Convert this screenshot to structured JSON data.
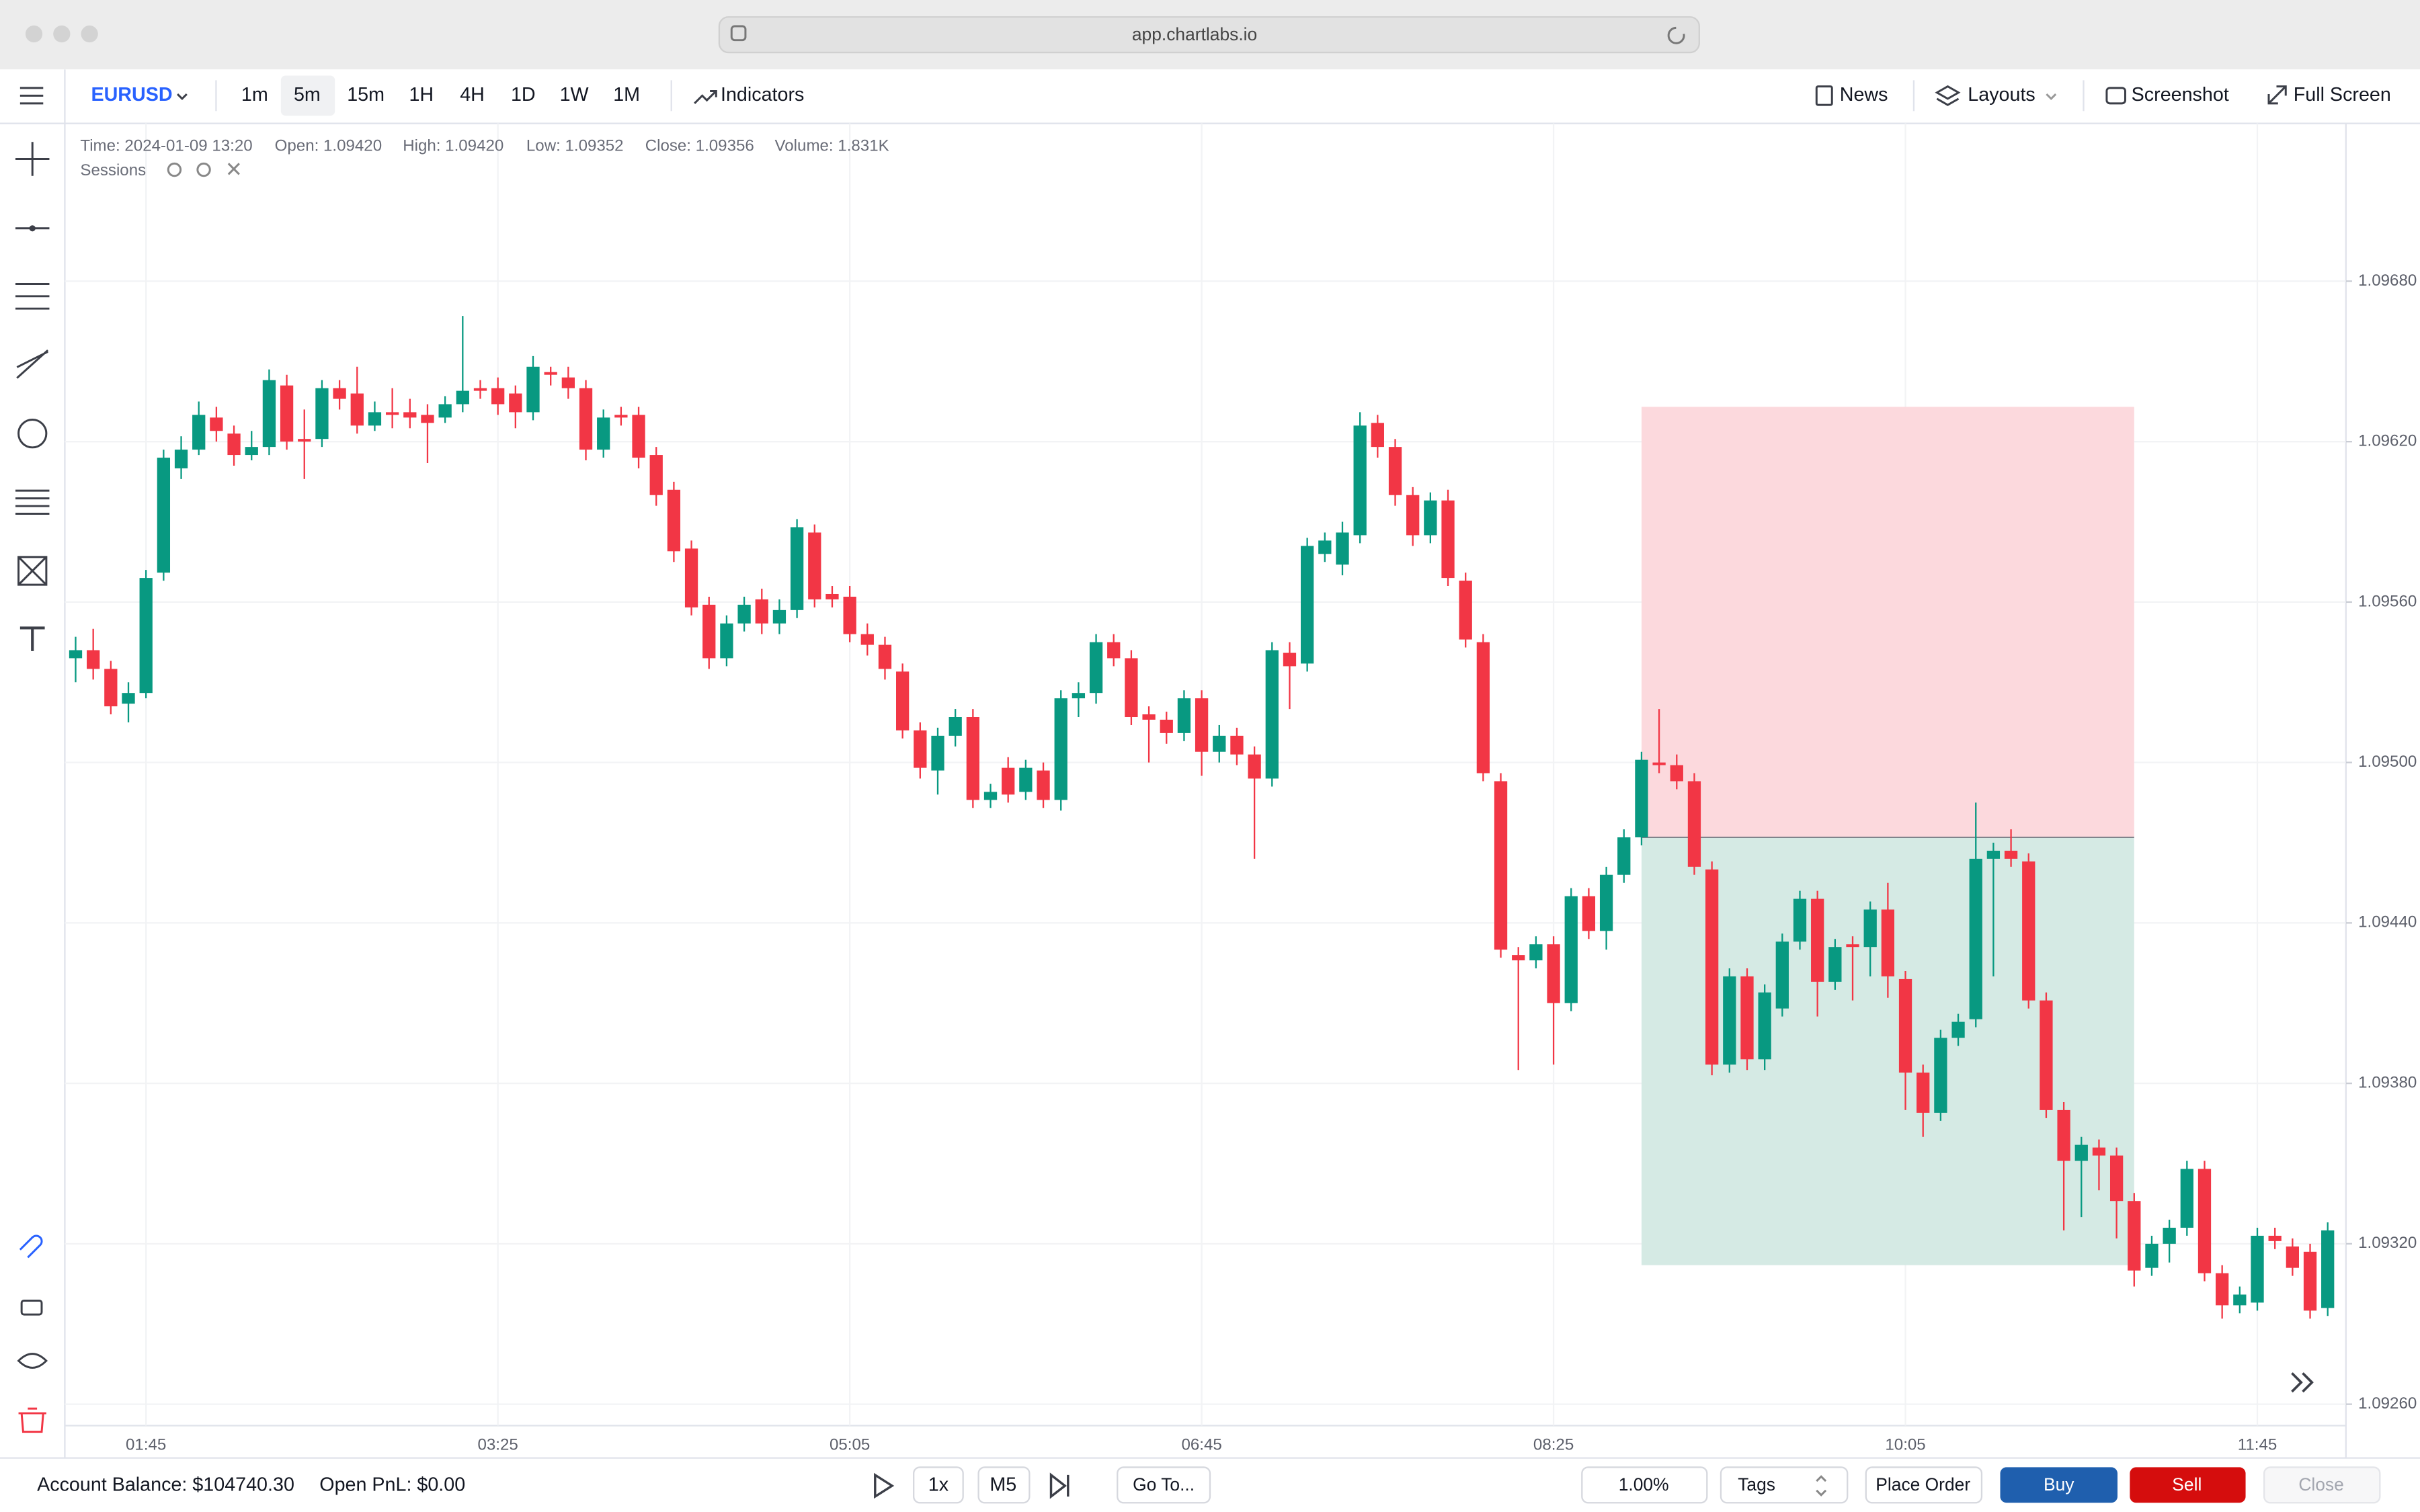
{
  "browser": {
    "url": "app.chartlabs.io"
  },
  "toolbar": {
    "symbol": "EURUSD",
    "timeframes": [
      "1m",
      "5m",
      "15m",
      "1H",
      "4H",
      "1D",
      "1W",
      "1M"
    ],
    "active_timeframe": "5m",
    "indicators": "Indicators",
    "news": "News",
    "layouts": "Layouts",
    "screenshot": "Screenshot",
    "full_screen": "Full Screen"
  },
  "legend": {
    "time": "Time: 2024-01-09 13:20",
    "open": "Open: 1.09420",
    "high": "High: 1.09420",
    "low": "Low: 1.09352",
    "close": "Close: 1.09356",
    "volume": "Volume: 1.831K",
    "sessions": "Sessions"
  },
  "bottom_bar": {
    "account_balance": "Account Balance: $104740.30",
    "open_pnl": "Open PnL: $0.00",
    "speed": "1x",
    "interval": "M5",
    "go_to": "Go To...",
    "risk": "1.00%",
    "tags": "Tags",
    "place_order": "Place Order",
    "buy": "Buy",
    "sell": "Sell",
    "close": "Close"
  },
  "chart_data": {
    "type": "candlestick",
    "up_color": "#089981",
    "down_color": "#f23645",
    "grid": true,
    "categories": [
      null,
      null,
      null,
      null,
      "01:45",
      null,
      null,
      null,
      null,
      null,
      null,
      null,
      null,
      null,
      null,
      null,
      null,
      null,
      null,
      null,
      null,
      null,
      null,
      null,
      "03:25",
      null,
      null,
      null,
      null,
      null,
      null,
      null,
      null,
      null,
      null,
      null,
      null,
      null,
      null,
      null,
      null,
      null,
      null,
      null,
      "05:05",
      null,
      null,
      null,
      null,
      null,
      null,
      null,
      null,
      null,
      null,
      null,
      null,
      null,
      null,
      null,
      null,
      null,
      null,
      null,
      "06:45",
      null,
      null,
      null,
      null,
      null,
      null,
      null,
      null,
      null,
      null,
      null,
      null,
      null,
      null,
      null,
      null,
      null,
      null,
      null,
      "08:25",
      null,
      null,
      null,
      null,
      null,
      null,
      null,
      null,
      null,
      null,
      null,
      null,
      null,
      null,
      null,
      null,
      null,
      null,
      null,
      "10:05",
      null,
      null,
      null,
      null,
      null,
      null,
      null,
      null,
      null,
      null,
      null,
      null,
      null,
      null,
      null,
      null,
      null,
      null,
      null,
      "11:45",
      null,
      null,
      null,
      null
    ],
    "open": [
      1.09539,
      1.09542,
      1.09535,
      1.09522,
      1.09526,
      1.09571,
      1.0961,
      1.09617,
      1.09629,
      1.09623,
      1.09615,
      1.09618,
      1.09641,
      1.09621,
      1.09621,
      1.0964,
      1.09638,
      1.09626,
      1.09631,
      1.09631,
      1.0963,
      1.09629,
      1.09634,
      1.0964,
      1.0964,
      1.09638,
      1.09631,
      1.09646,
      1.09644,
      1.0964,
      1.09617,
      1.0963,
      1.0963,
      1.09615,
      1.09602,
      1.0958,
      1.09559,
      1.09539,
      1.09552,
      1.09561,
      1.09552,
      1.09557,
      1.09586,
      1.09563,
      1.09562,
      1.09548,
      1.09544,
      1.09534,
      1.09512,
      1.09497,
      1.0951,
      1.09517,
      1.09486,
      1.09498,
      1.09489,
      1.09497,
      1.09486,
      1.09524,
      1.09526,
      1.09545,
      1.09539,
      1.09518,
      1.09516,
      1.09511,
      1.09524,
      1.09504,
      1.0951,
      1.09503,
      1.09494,
      1.09541,
      1.09537,
      1.09578,
      1.09574,
      1.09585,
      1.09627,
      1.09618,
      1.096,
      1.09585,
      1.09598,
      1.09568,
      1.09545,
      1.09493,
      1.09428,
      1.09426,
      1.09432,
      1.0941,
      1.0945,
      1.09437,
      1.09458,
      1.09472,
      1.095,
      1.09499,
      1.09493,
      1.0946,
      1.09387,
      1.0942,
      1.09389,
      1.09408,
      1.09433,
      1.09449,
      1.09418,
      1.09432,
      1.09431,
      1.09445,
      1.09419,
      1.09384,
      1.09369,
      1.09397,
      1.09404,
      1.09464,
      1.09467,
      1.09463,
      1.09411,
      1.0937,
      1.09351,
      1.09356,
      1.09353,
      1.09336,
      1.09311,
      1.0932,
      1.09326,
      1.09348,
      1.09309,
      1.09297,
      1.09298,
      1.09323,
      1.09319,
      1.09317,
      1.09296
    ],
    "high": [
      1.09547,
      1.0955,
      1.09538,
      1.0953,
      1.09572,
      1.09617,
      1.09622,
      1.09635,
      1.09633,
      1.09626,
      1.09624,
      1.09647,
      1.09645,
      1.09632,
      1.09643,
      1.09643,
      1.09648,
      1.09635,
      1.0964,
      1.09636,
      1.09634,
      1.09637,
      1.09667,
      1.09643,
      1.09644,
      1.09641,
      1.09652,
      1.09648,
      1.09648,
      1.09643,
      1.09632,
      1.09633,
      1.09633,
      1.09618,
      1.09605,
      1.09583,
      1.09562,
      1.09555,
      1.09562,
      1.09565,
      1.09561,
      1.09591,
      1.09589,
      1.09566,
      1.09566,
      1.09552,
      1.09547,
      1.09537,
      1.09515,
      1.09513,
      1.0952,
      1.0952,
      1.09492,
      1.09502,
      1.09501,
      1.095,
      1.09527,
      1.0953,
      1.09548,
      1.09548,
      1.09542,
      1.09521,
      1.09519,
      1.09527,
      1.09527,
      1.09514,
      1.09513,
      1.09506,
      1.09545,
      1.09545,
      1.09584,
      1.09586,
      1.0959,
      1.09631,
      1.0963,
      1.09621,
      1.09603,
      1.09601,
      1.09602,
      1.09571,
      1.09548,
      1.09496,
      1.09431,
      1.09435,
      1.09435,
      1.09453,
      1.09453,
      1.09461,
      1.09475,
      1.09504,
      1.0952,
      1.09503,
      1.09496,
      1.09463,
      1.09423,
      1.09423,
      1.09417,
      1.09436,
      1.09452,
      1.09452,
      1.09434,
      1.09435,
      1.09448,
      1.09455,
      1.09422,
      1.09387,
      1.094,
      1.09406,
      1.09485,
      1.0947,
      1.09475,
      1.09466,
      1.09414,
      1.09373,
      1.0936,
      1.09359,
      1.09356,
      1.09339,
      1.09323,
      1.09329,
      1.09351,
      1.09351,
      1.09312,
      1.09304,
      1.09326,
      1.09326,
      1.09322,
      1.0932,
      1.09328
    ],
    "low": [
      1.0953,
      1.09531,
      1.09518,
      1.09515,
      1.09524,
      1.09568,
      1.09606,
      1.09615,
      1.0962,
      1.09611,
      1.09613,
      1.09615,
      1.09617,
      1.09606,
      1.09618,
      1.09632,
      1.09623,
      1.09624,
      1.09625,
      1.09625,
      1.09612,
      1.09627,
      1.09631,
      1.09636,
      1.0963,
      1.09625,
      1.09628,
      1.09641,
      1.09636,
      1.09613,
      1.09614,
      1.09626,
      1.0961,
      1.09596,
      1.09575,
      1.09555,
      1.09535,
      1.09536,
      1.09549,
      1.09548,
      1.09548,
      1.09554,
      1.09558,
      1.09558,
      1.09545,
      1.0954,
      1.09531,
      1.09509,
      1.09494,
      1.09488,
      1.09506,
      1.09483,
      1.09483,
      1.09485,
      1.09486,
      1.09483,
      1.09482,
      1.09517,
      1.09522,
      1.09536,
      1.09514,
      1.095,
      1.09507,
      1.09508,
      1.09495,
      1.095,
      1.09499,
      1.09464,
      1.09491,
      1.0952,
      1.09534,
      1.09575,
      1.0957,
      1.09582,
      1.09614,
      1.09596,
      1.09581,
      1.09582,
      1.09566,
      1.09543,
      1.09493,
      1.09427,
      1.09385,
      1.09423,
      1.09387,
      1.09407,
      1.09434,
      1.0943,
      1.09455,
      1.09469,
      1.09496,
      1.0949,
      1.09458,
      1.09383,
      1.09384,
      1.09385,
      1.09385,
      1.09405,
      1.0943,
      1.09405,
      1.09415,
      1.09411,
      1.0942,
      1.09412,
      1.0937,
      1.0936,
      1.09366,
      1.09394,
      1.09401,
      1.0942,
      1.09461,
      1.09408,
      1.09367,
      1.09325,
      1.0933,
      1.0934,
      1.09322,
      1.09304,
      1.09308,
      1.09313,
      1.09323,
      1.09306,
      1.09292,
      1.09294,
      1.09295,
      1.09318,
      1.09308,
      1.09292,
      1.09293
    ],
    "close": [
      1.09542,
      1.09535,
      1.09521,
      1.09526,
      1.09569,
      1.09614,
      1.09617,
      1.0963,
      1.09624,
      1.09615,
      1.09618,
      1.09643,
      1.0962,
      1.0962,
      1.0964,
      1.09636,
      1.09626,
      1.09631,
      1.0963,
      1.09629,
      1.09627,
      1.09634,
      1.09639,
      1.09639,
      1.09634,
      1.09631,
      1.09648,
      1.09645,
      1.0964,
      1.09617,
      1.09629,
      1.09629,
      1.09614,
      1.096,
      1.09579,
      1.09558,
      1.09539,
      1.09552,
      1.09559,
      1.09552,
      1.09557,
      1.09588,
      1.09561,
      1.09561,
      1.09548,
      1.09544,
      1.09535,
      1.09512,
      1.09498,
      1.0951,
      1.09517,
      1.09486,
      1.09489,
      1.09488,
      1.09498,
      1.09486,
      1.09524,
      1.09526,
      1.09545,
      1.09539,
      1.09517,
      1.09516,
      1.09511,
      1.09524,
      1.09504,
      1.0951,
      1.09503,
      1.09494,
      1.09542,
      1.09536,
      1.09581,
      1.09583,
      1.09586,
      1.09626,
      1.09618,
      1.096,
      1.09585,
      1.09598,
      1.09569,
      1.09546,
      1.09496,
      1.0943,
      1.09426,
      1.09432,
      1.0941,
      1.0945,
      1.09437,
      1.09458,
      1.09472,
      1.09501,
      1.09499,
      1.09493,
      1.09461,
      1.09387,
      1.0942,
      1.09389,
      1.09414,
      1.09433,
      1.09449,
      1.09418,
      1.09431,
      1.09431,
      1.09445,
      1.0942,
      1.09384,
      1.09369,
      1.09397,
      1.09403,
      1.09464,
      1.09467,
      1.09464,
      1.09411,
      1.0937,
      1.09351,
      1.09357,
      1.09353,
      1.09336,
      1.0931,
      1.0932,
      1.09326,
      1.09348,
      1.09309,
      1.09297,
      1.09301,
      1.09323,
      1.09321,
      1.09311,
      1.09295,
      1.09325
    ],
    "ylim": [
      1.09252,
      1.09739
    ],
    "yticks": [
      {
        "value": 1.0926,
        "label": "1.09260"
      },
      {
        "value": 1.0932,
        "label": "1.09320"
      },
      {
        "value": 1.0938,
        "label": "1.09380"
      },
      {
        "value": 1.0944,
        "label": "1.09440"
      },
      {
        "value": 1.095,
        "label": "1.09500"
      },
      {
        "value": 1.0956,
        "label": "1.09560"
      },
      {
        "value": 1.0962,
        "label": "1.09620"
      },
      {
        "value": 1.0968,
        "label": "1.09680"
      }
    ],
    "position": {
      "entry": 1.09472,
      "stop": 1.09633,
      "target": 1.09312,
      "start": 89,
      "end": 117,
      "stop_color": "#fcd9dd",
      "target_color": "#d5eae4"
    }
  }
}
